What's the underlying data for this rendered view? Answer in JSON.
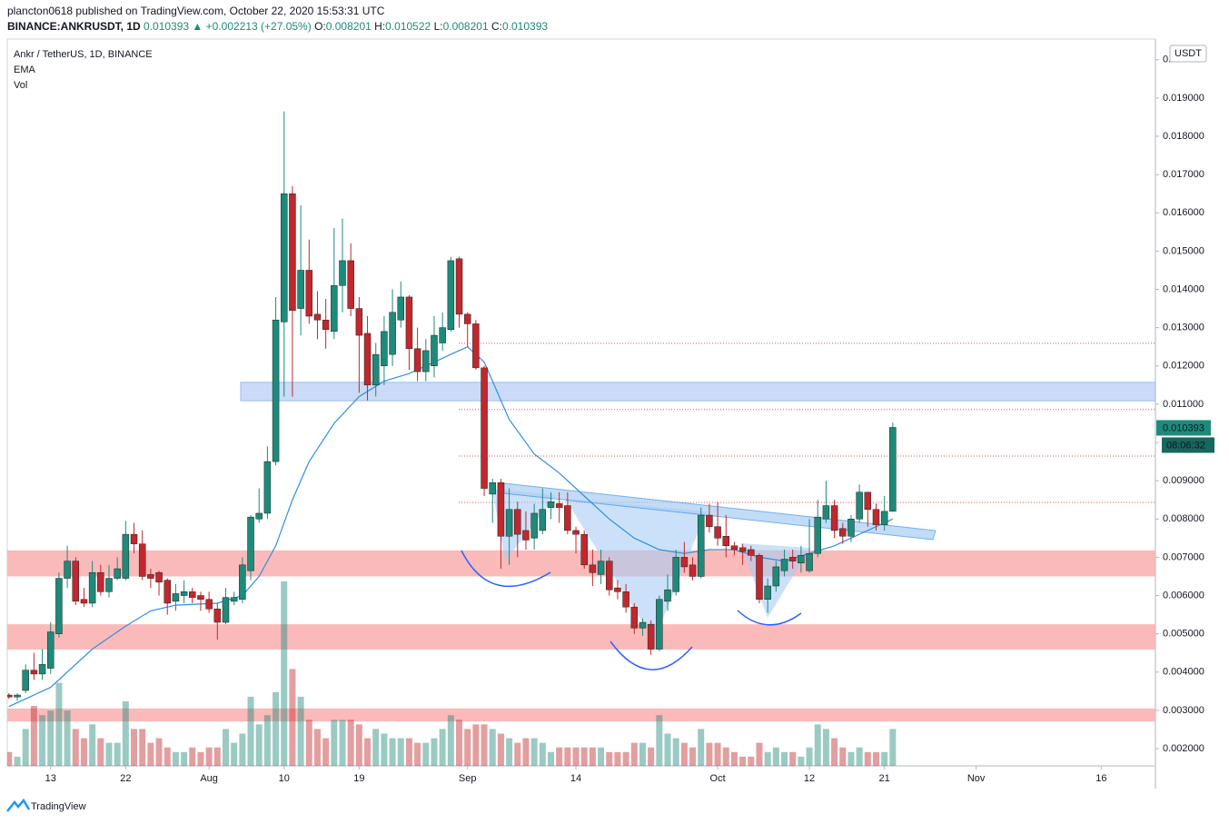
{
  "header": {
    "publisher": "plancton0618 published on TradingView.com, October 22, 2020 15:53:31 UTC"
  },
  "chart_data": {
    "type": "candlestick",
    "symbol": "BINANCE:ANKRUSDT, 1D",
    "change": "▲ +0.002213 (+27.05%)",
    "ohlc_labels": [
      "O:",
      "H:",
      "L:",
      "C:"
    ],
    "legend": [
      "Ankr / TetherUS, 1D, BINANCE",
      "EMA",
      "Vol"
    ],
    "currency": "USDT",
    "countdown": "08:06:32",
    "up_color": "#1e8a7a",
    "down_color": "#c0282d",
    "open": [
      0.0034,
      0.00335,
      0.00352,
      0.00405,
      0.00395,
      0.0041,
      0.005,
      0.00645,
      0.0069,
      0.0059,
      0.0058,
      0.0066,
      0.0061,
      0.00645,
      0.00645,
      0.0076,
      0.00735,
      0.00655,
      0.0066,
      0.0064,
      0.00585,
      0.006,
      0.0061,
      0.006,
      0.0059,
      0.00565,
      0.0053,
      0.00585,
      0.0059,
      0.00665,
      0.008,
      0.00815,
      0.0095,
      0.01315,
      0.0165,
      0.0135,
      0.0145,
      0.01335,
      0.0132,
      0.0129,
      0.0141,
      0.01475,
      0.0135,
      0.01285,
      0.0115,
      0.012,
      0.0123,
      0.0132,
      0.0138,
      0.01245,
      0.01185,
      0.012,
      0.0126,
      0.01295,
      0.0148,
      0.01335,
      0.0131,
      0.01195,
      0.00865,
      0.00895,
      0.00755,
      0.00825,
      0.0077,
      0.0075,
      0.0077,
      0.0083,
      0.0084,
      0.00835,
      0.0077,
      0.0076,
      0.0068,
      0.00655,
      0.0069,
      0.0062,
      0.0061,
      0.0057,
      0.00515,
      0.00525,
      0.0046,
      0.00585,
      0.0061,
      0.007,
      0.0068,
      0.0065,
      0.0081,
      0.0078,
      0.00755,
      0.0073,
      0.00725,
      0.0072,
      0.00705,
      0.0059,
      0.00625,
      0.00665,
      0.007,
      0.00685,
      0.00665,
      0.0071,
      0.008,
      0.00835,
      0.00775,
      0.00755,
      0.008,
      0.0087,
      0.00825,
      0.00785,
      0.008201
    ],
    "high": [
      0.00345,
      0.00345,
      0.0042,
      0.0045,
      0.0046,
      0.0053,
      0.0066,
      0.0073,
      0.007,
      0.0062,
      0.0069,
      0.0068,
      0.0068,
      0.007,
      0.00795,
      0.0079,
      0.0077,
      0.0067,
      0.00665,
      0.00645,
      0.0063,
      0.0064,
      0.0062,
      0.0061,
      0.0061,
      0.0058,
      0.0062,
      0.0061,
      0.007,
      0.0081,
      0.0088,
      0.0099,
      0.0138,
      0.01865,
      0.0167,
      0.0162,
      0.0153,
      0.01395,
      0.01375,
      0.0156,
      0.01585,
      0.0152,
      0.0138,
      0.0133,
      0.0126,
      0.0133,
      0.014,
      0.0142,
      0.01385,
      0.013,
      0.0127,
      0.0133,
      0.0134,
      0.01485,
      0.01485,
      0.0134,
      0.0132,
      0.012,
      0.00905,
      0.00905,
      0.0088,
      0.00845,
      0.0082,
      0.0084,
      0.0088,
      0.0087,
      0.0087,
      0.0087,
      0.0078,
      0.0077,
      0.0072,
      0.0072,
      0.007,
      0.0064,
      0.0063,
      0.0058,
      0.0054,
      0.00535,
      0.006,
      0.00655,
      0.0072,
      0.0074,
      0.007,
      0.0083,
      0.0084,
      0.00845,
      0.0081,
      0.0074,
      0.00735,
      0.0073,
      0.0071,
      0.00645,
      0.0069,
      0.0072,
      0.0072,
      0.0073,
      0.008,
      0.0085,
      0.009,
      0.0085,
      0.0079,
      0.0081,
      0.0089,
      0.0087,
      0.0084,
      0.0086,
      0.010522
    ],
    "low": [
      0.0033,
      0.00325,
      0.00345,
      0.0038,
      0.0038,
      0.00395,
      0.0049,
      0.0062,
      0.00575,
      0.0057,
      0.0057,
      0.006,
      0.00595,
      0.0064,
      0.0064,
      0.0071,
      0.0064,
      0.0062,
      0.006,
      0.0055,
      0.0056,
      0.0058,
      0.0058,
      0.0056,
      0.00555,
      0.00485,
      0.00525,
      0.00575,
      0.0058,
      0.0064,
      0.0079,
      0.008,
      0.0094,
      0.0112,
      0.0112,
      0.0128,
      0.0131,
      0.0127,
      0.01245,
      0.0127,
      0.0134,
      0.0133,
      0.0113,
      0.0111,
      0.0112,
      0.0115,
      0.012,
      0.013,
      0.0119,
      0.0116,
      0.0116,
      0.0117,
      0.0124,
      0.0129,
      0.013,
      0.0125,
      0.0119,
      0.0086,
      0.0079,
      0.0067,
      0.0068,
      0.007,
      0.0072,
      0.0072,
      0.0076,
      0.008,
      0.0079,
      0.0076,
      0.0071,
      0.0067,
      0.00625,
      0.0063,
      0.006,
      0.0059,
      0.00555,
      0.005,
      0.00495,
      0.00445,
      0.00455,
      0.0056,
      0.006,
      0.0066,
      0.0064,
      0.00645,
      0.00765,
      0.0073,
      0.007,
      0.00705,
      0.0068,
      0.0069,
      0.0058,
      0.00555,
      0.0061,
      0.0065,
      0.0067,
      0.0066,
      0.0066,
      0.007,
      0.0079,
      0.0075,
      0.00735,
      0.0074,
      0.0079,
      0.0078,
      0.0077,
      0.0077,
      0.008201
    ],
    "close": [
      0.00335,
      0.0034,
      0.00405,
      0.00395,
      0.0042,
      0.00505,
      0.00645,
      0.0069,
      0.00585,
      0.0058,
      0.0066,
      0.0061,
      0.00645,
      0.0067,
      0.0076,
      0.00735,
      0.0065,
      0.00645,
      0.00635,
      0.0058,
      0.00605,
      0.0061,
      0.00595,
      0.0059,
      0.00565,
      0.0053,
      0.00595,
      0.00595,
      0.0068,
      0.00805,
      0.00815,
      0.0095,
      0.0132,
      0.0165,
      0.01345,
      0.0145,
      0.0133,
      0.0132,
      0.01295,
      0.0141,
      0.01475,
      0.0135,
      0.0128,
      0.0115,
      0.0123,
      0.0129,
      0.0134,
      0.0138,
      0.01245,
      0.01185,
      0.0124,
      0.0128,
      0.013,
      0.01475,
      0.01335,
      0.0131,
      0.01195,
      0.0088,
      0.00895,
      0.00755,
      0.00825,
      0.0076,
      0.00745,
      0.00815,
      0.00825,
      0.00845,
      0.0083,
      0.0077,
      0.0076,
      0.0068,
      0.0066,
      0.0069,
      0.00615,
      0.0061,
      0.0057,
      0.00515,
      0.0053,
      0.0046,
      0.0059,
      0.00615,
      0.007,
      0.00675,
      0.0065,
      0.0081,
      0.0078,
      0.0075,
      0.0073,
      0.0072,
      0.00715,
      0.00705,
      0.0059,
      0.00625,
      0.00675,
      0.00695,
      0.0069,
      0.00705,
      0.0071,
      0.00805,
      0.00835,
      0.0077,
      0.00755,
      0.008,
      0.0087,
      0.00825,
      0.00785,
      0.0082,
      0.010393
    ],
    "volume": [
      15,
      10,
      40,
      65,
      55,
      60,
      90,
      60,
      40,
      30,
      45,
      30,
      25,
      25,
      70,
      40,
      40,
      25,
      30,
      20,
      15,
      15,
      20,
      15,
      20,
      20,
      40,
      25,
      35,
      75,
      45,
      55,
      80,
      200,
      105,
      75,
      50,
      40,
      30,
      50,
      50,
      50,
      45,
      30,
      40,
      35,
      30,
      30,
      30,
      25,
      25,
      30,
      40,
      55,
      50,
      40,
      45,
      45,
      40,
      35,
      30,
      25,
      30,
      30,
      25,
      15,
      20,
      20,
      20,
      20,
      20,
      20,
      15,
      15,
      15,
      25,
      25,
      20,
      55,
      35,
      30,
      25,
      20,
      40,
      25,
      25,
      20,
      15,
      10,
      10,
      25,
      15,
      20,
      15,
      15,
      10,
      20,
      45,
      40,
      30,
      20,
      15,
      20,
      15,
      15,
      15,
      40
    ],
    "ema": {
      "color": "#2f8fe0",
      "x": [
        0,
        5,
        10,
        14,
        17,
        20,
        25,
        28,
        30,
        32,
        34,
        36,
        39,
        42,
        45,
        48,
        51,
        53,
        55,
        57,
        60,
        63,
        66,
        69,
        72,
        75,
        78,
        81,
        84,
        87,
        90,
        93,
        96,
        99,
        102,
        105,
        106
      ],
      "values": [
        0.0031,
        0.0036,
        0.0046,
        0.0052,
        0.0056,
        0.00575,
        0.0058,
        0.006,
        0.0065,
        0.0073,
        0.0085,
        0.0095,
        0.0105,
        0.0112,
        0.0116,
        0.0118,
        0.0121,
        0.0123,
        0.0125,
        0.0121,
        0.0106,
        0.0097,
        0.0092,
        0.0086,
        0.008,
        0.0075,
        0.0072,
        0.0071,
        0.0072,
        0.0072,
        0.007,
        0.0069,
        0.0071,
        0.0073,
        0.0076,
        0.0079,
        0.008
      ]
    },
    "zones": [
      {
        "low": 0.0065,
        "high": 0.00718,
        "color": "#f9b3b3"
      },
      {
        "low": 0.00459,
        "high": 0.00525,
        "color": "#f9b3b3"
      },
      {
        "low": 0.00271,
        "high": 0.00305,
        "color": "#f9b3b3"
      },
      {
        "low": 0.01109,
        "high": 0.01157,
        "color": "#c6d8f7"
      }
    ],
    "levels": [
      0.01259,
      0.01086,
      0.009645,
      0.008434
    ],
    "level_color": "#e05050",
    "xlim": [
      -0.2,
      137.5
    ],
    "xticks": [
      {
        "value": 5,
        "label": "13"
      },
      {
        "value": 14,
        "label": "22"
      },
      {
        "value": 24,
        "label": "Aug"
      },
      {
        "value": 33,
        "label": "10"
      },
      {
        "value": 42,
        "label": "19"
      },
      {
        "value": 55,
        "label": "Sep"
      },
      {
        "value": 68,
        "label": "14"
      },
      {
        "value": 85,
        "label": "Oct"
      },
      {
        "value": 96,
        "label": "12"
      },
      {
        "value": 105,
        "label": "21"
      },
      {
        "value": 116,
        "label": "Nov"
      },
      {
        "value": 131,
        "label": "16"
      }
    ],
    "ylim": [
      0.00155,
      0.02054
    ],
    "yticks": [
      {
        "value": 0.002,
        "label": "0.002000"
      },
      {
        "value": 0.003,
        "label": "0.003000"
      },
      {
        "value": 0.004,
        "label": "0.004000"
      },
      {
        "value": 0.005,
        "label": "0.005000"
      },
      {
        "value": 0.006,
        "label": "0.006000"
      },
      {
        "value": 0.007,
        "label": "0.007000"
      },
      {
        "value": 0.008,
        "label": "0.008000"
      },
      {
        "value": 0.009,
        "label": "0.009000"
      },
      {
        "value": 0.01,
        "label": "0.010000"
      },
      {
        "value": 0.011,
        "label": "0.011000"
      },
      {
        "value": 0.012,
        "label": "0.012000"
      },
      {
        "value": 0.013,
        "label": "0.013000"
      },
      {
        "value": 0.014,
        "label": "0.014000"
      },
      {
        "value": 0.015,
        "label": "0.015000"
      },
      {
        "value": 0.016,
        "label": "0.016000"
      },
      {
        "value": 0.017,
        "label": "0.017000"
      },
      {
        "value": 0.018,
        "label": "0.018000"
      },
      {
        "value": 0.019,
        "label": "0.019000"
      },
      {
        "value": 0.02,
        "label": "0.020000"
      }
    ]
  },
  "footer": {
    "brand": "TradingView"
  }
}
